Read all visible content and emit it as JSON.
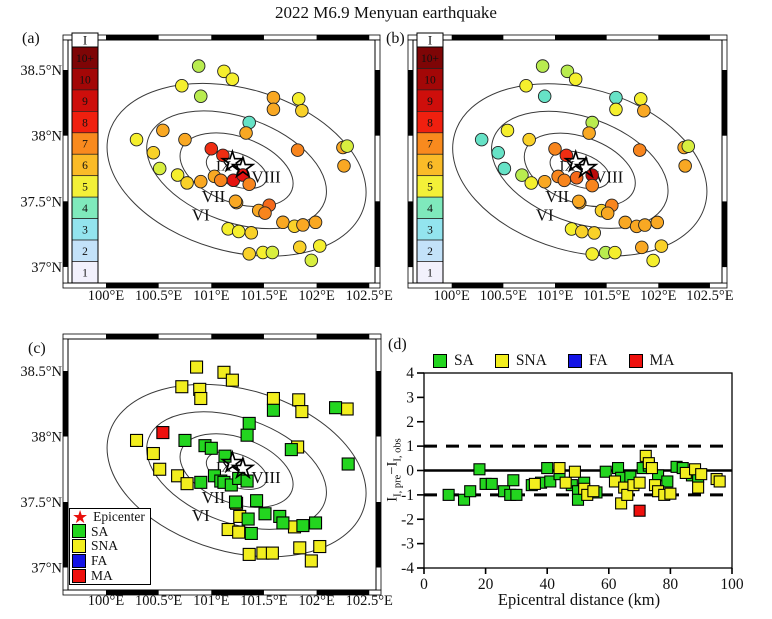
{
  "figure_title": "2022 M6.9 Menyuan earthquake",
  "panel_labels": {
    "a": "(a)",
    "b": "(b)",
    "c": "(c)",
    "d": "(d)"
  },
  "map_axes": {
    "lon_tick_labels": [
      "100°E",
      "100.5°E",
      "101°E",
      "101.5°E",
      "102°E",
      "102.5°E"
    ],
    "lon_tick_values": [
      100,
      100.5,
      101,
      101.5,
      102,
      102.5
    ],
    "lat_tick_labels": [
      "38.5°N",
      "38°N",
      "37.5°N",
      "37°N"
    ],
    "lat_tick_values": [
      38.5,
      38,
      37.5,
      37
    ]
  },
  "colorbar": {
    "title": "I",
    "labels_top_to_bottom": [
      "10+",
      "10",
      "9",
      "8",
      "7",
      "6",
      "5",
      "4",
      "3",
      "2",
      "1"
    ],
    "colors_top_to_bottom": [
      "#7E0506",
      "#A30707",
      "#CE0E0B",
      "#F0200F",
      "#F98A1E",
      "#FABB28",
      "#F3F038",
      "#7FE9BC",
      "#93E4EE",
      "#C3E2F9",
      "#F2F1FC"
    ]
  },
  "intensity_colormap": {
    "4": "#66E2C6",
    "4.5": "#B9EC4F",
    "4.8": "#D8EE3F",
    "5": "#F5EF2D",
    "5.5": "#F9D129",
    "6": "#F9A823",
    "6.5": "#F8851D",
    "7": "#F4691B",
    "7.5": "#EF2D12",
    "8": "#E51310",
    "8.5": "#BB0909"
  },
  "category_colors": {
    "SA": "#23D51F",
    "SNA": "#F2EE1E",
    "FA": "#1414E6",
    "MA": "#EE100D"
  },
  "contour_labels": [
    {
      "text": "VI",
      "lon": 100.9,
      "lat": 37.4,
      "size": 17
    },
    {
      "text": "VII",
      "lon": 101.02,
      "lat": 37.54,
      "size": 17
    },
    {
      "text": "VIII",
      "lon": 101.52,
      "lat": 37.69,
      "size": 17
    },
    {
      "text": "IX",
      "lon": 101.12,
      "lat": 37.78,
      "size": 15
    }
  ],
  "epicenter_stars": [
    {
      "lon": 101.2,
      "lat": 37.8
    },
    {
      "lon": 101.3,
      "lat": 37.755
    }
  ],
  "panel_c_legend": [
    {
      "symbol": "star",
      "color": "#E8100C",
      "label": "Epicenter"
    },
    {
      "symbol": "square",
      "color": "#23D51F",
      "label": "SA"
    },
    {
      "symbol": "square",
      "color": "#F2EE1E",
      "label": "SNA"
    },
    {
      "symbol": "square",
      "color": "#1414E6",
      "label": "FA"
    },
    {
      "symbol": "square",
      "color": "#EE100D",
      "label": "MA"
    }
  ],
  "panel_d": {
    "legend": [
      {
        "label": "SA",
        "color": "#23D51F"
      },
      {
        "label": "SNA",
        "color": "#F2EE1E"
      },
      {
        "label": "FA",
        "color": "#1414E6"
      },
      {
        "label": "MA",
        "color": "#EE100D"
      }
    ],
    "xlabel": "Epicentral distance (km)",
    "ylabel": {
      "m1": "I",
      "s1": "I, pre",
      "minus": "−",
      "m2": "I",
      "s2": "I, obs"
    },
    "x_tick_labels": [
      "0",
      "20",
      "40",
      "60",
      "80",
      "100"
    ],
    "x_tick_values": [
      0,
      20,
      40,
      60,
      80,
      100
    ],
    "y_tick_labels": [
      "4",
      "3",
      "2",
      "1",
      "0",
      "-1",
      "-2",
      "-3",
      "-4"
    ],
    "y_tick_values": [
      4,
      3,
      2,
      1,
      0,
      -1,
      -2,
      -3,
      -4
    ],
    "ref_lines": {
      "solid_y": 0,
      "dashed_y": [
        1,
        -1
      ]
    }
  },
  "chart_data": {
    "panel_a": {
      "type": "scatter",
      "map": true,
      "value": "observed instrumental intensity I",
      "lon_range": [
        99.68,
        102.62
      ],
      "lat_range": [
        36.88,
        38.73
      ],
      "points": [
        [
          100.88,
          38.53,
          4.5
        ],
        [
          101.12,
          38.49,
          5
        ],
        [
          101.2,
          38.43,
          5
        ],
        [
          100.72,
          38.38,
          5
        ],
        [
          100.9,
          38.3,
          4.5
        ],
        [
          101.59,
          38.29,
          6
        ],
        [
          101.83,
          38.28,
          5
        ],
        [
          101.59,
          38.2,
          6
        ],
        [
          101.86,
          38.19,
          5.5
        ],
        [
          101.36,
          38.1,
          4
        ],
        [
          101.33,
          38.02,
          6
        ],
        [
          100.54,
          38.04,
          6
        ],
        [
          100.29,
          37.97,
          5
        ],
        [
          100.75,
          37.97,
          6
        ],
        [
          100.45,
          37.87,
          5.5
        ],
        [
          101.0,
          37.9,
          7.5
        ],
        [
          101.11,
          37.85,
          7.5
        ],
        [
          100.51,
          37.75,
          4.8
        ],
        [
          100.68,
          37.7,
          5
        ],
        [
          100.77,
          37.64,
          5.5
        ],
        [
          100.9,
          37.65,
          6
        ],
        [
          101.03,
          37.69,
          6
        ],
        [
          101.09,
          37.66,
          6.5
        ],
        [
          101.21,
          37.66,
          8
        ],
        [
          101.3,
          37.7,
          8
        ],
        [
          101.36,
          37.63,
          6.5
        ],
        [
          101.24,
          37.49,
          6
        ],
        [
          101.45,
          37.43,
          6
        ],
        [
          101.55,
          37.47,
          7
        ],
        [
          101.68,
          37.34,
          6
        ],
        [
          101.79,
          37.31,
          5.5
        ],
        [
          101.87,
          37.32,
          6
        ],
        [
          101.99,
          37.34,
          6
        ],
        [
          101.16,
          37.29,
          5
        ],
        [
          101.26,
          37.27,
          5
        ],
        [
          101.38,
          37.26,
          5.5
        ],
        [
          101.84,
          37.15,
          5.5
        ],
        [
          101.49,
          37.11,
          5
        ],
        [
          101.58,
          37.11,
          4.8
        ],
        [
          101.95,
          37.05,
          4.8
        ],
        [
          102.03,
          37.16,
          5
        ],
        [
          101.36,
          37.1,
          5.5
        ],
        [
          101.82,
          37.89,
          6.5
        ],
        [
          102.25,
          37.91,
          6
        ],
        [
          102.29,
          37.92,
          4.8
        ],
        [
          102.26,
          37.77,
          6
        ],
        [
          101.51,
          37.41,
          6.5
        ],
        [
          101.23,
          37.5,
          6
        ]
      ]
    },
    "panel_b": {
      "type": "scatter",
      "map": true,
      "value": "predicted instrumental intensity I",
      "lon_range": [
        99.63,
        102.62
      ],
      "lat_range": [
        36.88,
        38.73
      ],
      "points": [
        [
          100.88,
          38.53,
          4.5
        ],
        [
          101.12,
          38.49,
          4.5
        ],
        [
          101.2,
          38.43,
          5
        ],
        [
          100.72,
          38.38,
          5
        ],
        [
          100.9,
          38.3,
          4
        ],
        [
          101.59,
          38.29,
          4
        ],
        [
          101.83,
          38.28,
          5
        ],
        [
          101.59,
          38.2,
          5
        ],
        [
          101.86,
          38.19,
          6
        ],
        [
          101.36,
          38.1,
          4.5
        ],
        [
          101.33,
          38.02,
          6
        ],
        [
          100.54,
          38.04,
          5
        ],
        [
          100.29,
          37.97,
          4
        ],
        [
          100.75,
          37.97,
          5.5
        ],
        [
          100.45,
          37.87,
          4
        ],
        [
          101.0,
          37.9,
          6.5
        ],
        [
          101.11,
          37.85,
          7.5
        ],
        [
          100.51,
          37.75,
          4
        ],
        [
          100.68,
          37.7,
          4.5
        ],
        [
          100.77,
          37.64,
          5
        ],
        [
          100.9,
          37.65,
          6
        ],
        [
          101.03,
          37.69,
          6.5
        ],
        [
          101.09,
          37.66,
          6.5
        ],
        [
          101.21,
          37.68,
          7
        ],
        [
          101.36,
          37.7,
          8.5
        ],
        [
          101.36,
          37.62,
          6.5
        ],
        [
          101.24,
          37.49,
          6
        ],
        [
          101.45,
          37.43,
          5.5
        ],
        [
          101.55,
          37.47,
          6.5
        ],
        [
          101.68,
          37.34,
          6
        ],
        [
          101.79,
          37.31,
          6
        ],
        [
          101.87,
          37.32,
          6
        ],
        [
          101.99,
          37.34,
          6
        ],
        [
          101.16,
          37.29,
          5
        ],
        [
          101.26,
          37.27,
          5.5
        ],
        [
          101.38,
          37.26,
          5.5
        ],
        [
          101.84,
          37.15,
          6
        ],
        [
          101.49,
          37.11,
          4.5
        ],
        [
          101.58,
          37.11,
          5
        ],
        [
          101.95,
          37.05,
          5
        ],
        [
          102.03,
          37.16,
          5.5
        ],
        [
          101.36,
          37.1,
          5
        ],
        [
          101.82,
          37.89,
          6.5
        ],
        [
          102.25,
          37.91,
          6
        ],
        [
          102.29,
          37.92,
          4.8
        ],
        [
          102.26,
          37.77,
          6
        ],
        [
          101.51,
          37.41,
          6
        ],
        [
          101.23,
          37.5,
          6
        ]
      ]
    },
    "panel_c": {
      "type": "scatter",
      "map": true,
      "value": "station category",
      "points": [
        [
          100.86,
          38.53,
          "SNA"
        ],
        [
          101.12,
          38.49,
          "SNA"
        ],
        [
          101.2,
          38.43,
          "SNA"
        ],
        [
          100.72,
          38.38,
          "SNA"
        ],
        [
          100.89,
          38.36,
          "SNA"
        ],
        [
          100.9,
          38.29,
          "SNA"
        ],
        [
          101.59,
          38.29,
          "SNA"
        ],
        [
          101.83,
          38.28,
          "SNA"
        ],
        [
          101.86,
          38.19,
          "SNA"
        ],
        [
          100.29,
          37.97,
          "SNA"
        ],
        [
          100.45,
          37.87,
          "SNA"
        ],
        [
          100.51,
          37.75,
          "SNA"
        ],
        [
          100.68,
          37.7,
          "SNA"
        ],
        [
          100.77,
          37.64,
          "SNA"
        ],
        [
          101.24,
          37.49,
          "SNA"
        ],
        [
          101.27,
          37.39,
          "SNA"
        ],
        [
          101.79,
          37.31,
          "SNA"
        ],
        [
          101.16,
          37.29,
          "SNA"
        ],
        [
          101.26,
          37.27,
          "SNA"
        ],
        [
          101.84,
          37.15,
          "SNA"
        ],
        [
          101.36,
          37.1,
          "SNA"
        ],
        [
          101.49,
          37.11,
          "SNA"
        ],
        [
          101.58,
          37.11,
          "SNA"
        ],
        [
          101.95,
          37.05,
          "SNA"
        ],
        [
          102.03,
          37.16,
          "SNA"
        ],
        [
          102.29,
          38.21,
          "SNA"
        ],
        [
          101.82,
          37.92,
          "SNA"
        ],
        [
          101.59,
          38.2,
          "SA"
        ],
        [
          101.36,
          38.1,
          "SA"
        ],
        [
          101.34,
          38.01,
          "SA"
        ],
        [
          100.75,
          37.97,
          "SA"
        ],
        [
          100.94,
          37.93,
          "SA"
        ],
        [
          101.0,
          37.91,
          "SA"
        ],
        [
          101.13,
          37.85,
          "SA"
        ],
        [
          100.9,
          37.65,
          "SA"
        ],
        [
          101.03,
          37.7,
          "SA"
        ],
        [
          101.09,
          37.66,
          "SA"
        ],
        [
          101.12,
          37.65,
          "SA"
        ],
        [
          101.19,
          37.63,
          "SA"
        ],
        [
          101.26,
          37.68,
          "SA"
        ],
        [
          101.34,
          37.66,
          "SA"
        ],
        [
          101.23,
          37.5,
          "SA"
        ],
        [
          101.43,
          37.51,
          "SA"
        ],
        [
          101.51,
          37.41,
          "SA"
        ],
        [
          101.35,
          37.37,
          "SA"
        ],
        [
          101.65,
          37.39,
          "SA"
        ],
        [
          101.68,
          37.34,
          "SA"
        ],
        [
          101.87,
          37.32,
          "SA"
        ],
        [
          101.99,
          37.34,
          "SA"
        ],
        [
          101.38,
          37.26,
          "SA"
        ],
        [
          102.18,
          38.22,
          "SA"
        ],
        [
          101.76,
          37.9,
          "SA"
        ],
        [
          102.3,
          37.79,
          "SA"
        ],
        [
          100.54,
          38.03,
          "MA"
        ]
      ]
    },
    "panel_d": {
      "type": "scatter",
      "xlabel": "Epicentral distance (km)",
      "xlim": [
        0,
        100
      ],
      "ylim": [
        -4,
        4
      ],
      "series": [
        {
          "name": "SA",
          "points": [
            [
              8,
              -1.0
            ],
            [
              13,
              -1.2
            ],
            [
              15,
              -0.85
            ],
            [
              18,
              0.05
            ],
            [
              20,
              -0.55
            ],
            [
              22,
              -0.55
            ],
            [
              26,
              -0.85
            ],
            [
              28,
              -1.0
            ],
            [
              29,
              -0.4
            ],
            [
              30,
              -1.0
            ],
            [
              35,
              -0.6
            ],
            [
              38,
              -0.5
            ],
            [
              40,
              0.1
            ],
            [
              41,
              -0.45
            ],
            [
              44,
              -0.15
            ],
            [
              48,
              -0.6
            ],
            [
              50,
              -0.85
            ],
            [
              50,
              -1.2
            ],
            [
              52,
              -0.5
            ],
            [
              56,
              -0.9
            ],
            [
              59,
              -0.05
            ],
            [
              63,
              0.1
            ],
            [
              64,
              -0.3
            ],
            [
              67,
              -0.25
            ],
            [
              71,
              0.1
            ],
            [
              73,
              0.2
            ],
            [
              76,
              -0.2
            ],
            [
              79,
              -0.45
            ],
            [
              82,
              0.15
            ],
            [
              84,
              0.1
            ],
            [
              87,
              -0.2
            ],
            [
              89,
              -0.25
            ]
          ]
        },
        {
          "name": "SNA",
          "points": [
            [
              36,
              -0.55
            ],
            [
              44,
              0.1
            ],
            [
              46,
              -0.5
            ],
            [
              49,
              -0.05
            ],
            [
              52,
              -0.75
            ],
            [
              53,
              -1.0
            ],
            [
              55,
              -0.85
            ],
            [
              62,
              -0.45
            ],
            [
              64,
              -1.35
            ],
            [
              65,
              -0.7
            ],
            [
              66,
              -1.0
            ],
            [
              68,
              -0.6
            ],
            [
              70,
              -0.5
            ],
            [
              72,
              0.6
            ],
            [
              73,
              0.3
            ],
            [
              74,
              0.1
            ],
            [
              75,
              -0.6
            ],
            [
              76,
              -0.85
            ],
            [
              78,
              -1.0
            ],
            [
              80,
              -0.95
            ],
            [
              85,
              -0.1
            ],
            [
              88,
              0.05
            ],
            [
              89,
              -0.7
            ],
            [
              90,
              -0.15
            ],
            [
              95,
              -0.35
            ],
            [
              96,
              -0.45
            ]
          ]
        },
        {
          "name": "FA",
          "points": []
        },
        {
          "name": "MA",
          "points": [
            [
              70,
              -1.65
            ]
          ]
        }
      ]
    }
  }
}
